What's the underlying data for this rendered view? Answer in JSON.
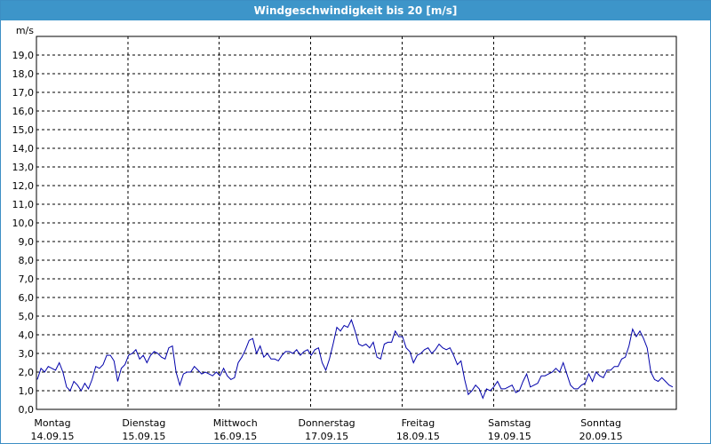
{
  "window": {
    "title": "Windgeschwindigkeit bis 20 [m/s]"
  },
  "chart_data": {
    "type": "line",
    "title": "Windgeschwindigkeit bis 20 [m/s]",
    "ylabel": "m/s",
    "xlabel": "",
    "ylim": [
      0,
      20
    ],
    "yticks": [
      "0,0",
      "1,0",
      "2,0",
      "3,0",
      "4,0",
      "5,0",
      "6,0",
      "7,0",
      "8,0",
      "9,0",
      "10,0",
      "11,0",
      "12,0",
      "13,0",
      "14,0",
      "15,0",
      "16,0",
      "17,0",
      "18,0",
      "19,0"
    ],
    "x_range_days": 7,
    "days": [
      {
        "name": "Montag",
        "date": "14.09.15"
      },
      {
        "name": "Dienstag",
        "date": "15.09.15"
      },
      {
        "name": "Mittwoch",
        "date": "16.09.15"
      },
      {
        "name": "Donnerstag",
        "date": "17.09.15"
      },
      {
        "name": "Freitag",
        "date": "18.09.15"
      },
      {
        "name": "Samstag",
        "date": "19.09.15"
      },
      {
        "name": "Sonntag",
        "date": "20.09.15"
      }
    ],
    "grid": true,
    "series": [
      {
        "color": "#0000aa",
        "values": [
          1.6,
          2.2,
          2.0,
          2.3,
          2.2,
          2.1,
          2.5,
          2.0,
          1.2,
          1.0,
          1.5,
          1.3,
          1.0,
          1.4,
          1.1,
          1.6,
          2.3,
          2.2,
          2.4,
          2.9,
          2.9,
          2.6,
          1.5,
          2.2,
          2.4,
          2.9,
          3.0,
          3.2,
          2.7,
          2.9,
          2.5,
          2.9,
          3.1,
          3.0,
          2.8,
          2.7,
          3.3,
          3.4,
          2.0,
          1.3,
          1.9,
          2.0,
          2.0,
          2.3,
          2.1,
          1.9,
          2.0,
          1.9,
          1.8,
          2.0,
          1.8,
          2.2,
          1.8,
          1.6,
          1.7,
          2.5,
          2.8,
          3.2,
          3.7,
          3.8,
          3.0,
          3.4,
          2.8,
          3.0,
          2.7,
          2.7,
          2.6,
          2.9,
          3.1,
          3.1,
          3.0,
          3.2,
          2.9,
          3.1,
          3.2,
          2.9,
          3.2,
          3.3,
          2.5,
          2.1,
          2.7,
          3.5,
          4.4,
          4.2,
          4.5,
          4.4,
          4.8,
          4.2,
          3.5,
          3.4,
          3.5,
          3.3,
          3.6,
          2.8,
          2.7,
          3.5,
          3.6,
          3.6,
          4.2,
          3.9,
          3.9,
          3.3,
          3.1,
          2.5,
          2.9,
          3.0,
          3.2,
          3.3,
          3.0,
          3.2,
          3.5,
          3.3,
          3.2,
          3.3,
          2.9,
          2.4,
          2.6,
          1.6,
          0.8,
          1.0,
          1.3,
          1.1,
          0.6,
          1.1,
          1.0,
          1.2,
          1.5,
          1.1,
          1.1,
          1.2,
          1.3,
          0.9,
          1.0,
          1.5,
          1.9,
          1.2,
          1.3,
          1.4,
          1.8,
          1.8,
          1.9,
          2.0,
          2.2,
          2.0,
          2.5,
          1.9,
          1.3,
          1.1,
          1.1,
          1.3,
          1.4,
          1.9,
          1.5,
          2.0,
          1.8,
          1.7,
          2.1,
          2.1,
          2.3,
          2.3,
          2.7,
          2.8,
          3.4,
          4.3,
          3.9,
          4.2,
          3.8,
          3.3,
          2.0,
          1.6,
          1.5,
          1.7,
          1.5,
          1.3,
          1.2
        ]
      }
    ]
  }
}
